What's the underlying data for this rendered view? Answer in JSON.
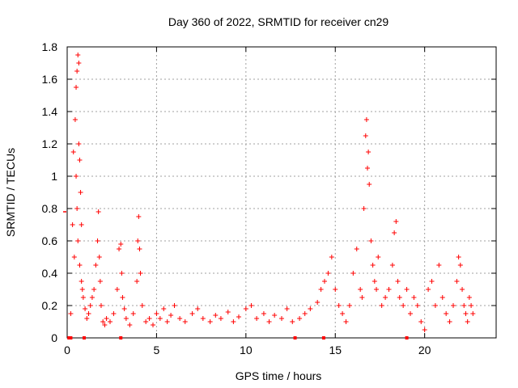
{
  "chart_data": {
    "type": "scatter",
    "title": "Day 360 of 2022, SRMTID for receiver cn29",
    "xlabel": "GPS time / hours",
    "ylabel": "SRMTID / TECUs",
    "xlim": [
      0,
      24
    ],
    "ylim": [
      0,
      1.8
    ],
    "xticks": [
      0,
      5,
      10,
      15,
      20
    ],
    "xtick_labels": [
      "0",
      "5",
      "10",
      "15",
      "20"
    ],
    "yticks": [
      0,
      0.2,
      0.4,
      0.6,
      0.8,
      1,
      1.2,
      1.4,
      1.6,
      1.8
    ],
    "ytick_labels": [
      "0",
      "0.2",
      "0.4",
      "0.6",
      "0.8",
      "1",
      "1.2",
      "1.4",
      "1.6",
      "1.8"
    ],
    "grid": true,
    "marker": "+",
    "color": "#ff0000",
    "series": [
      {
        "name": "SRMTID",
        "x": [
          0.2,
          0.3,
          0.35,
          0.4,
          0.45,
          0.5,
          0.5,
          0.55,
          0.55,
          0.6,
          0.6,
          0.65,
          0.65,
          0.7,
          0.7,
          0.75,
          0.8,
          0.8,
          0.85,
          0.9,
          1.0,
          1.1,
          1.2,
          1.3,
          1.4,
          1.5,
          1.6,
          1.7,
          1.75,
          1.8,
          1.85,
          1.9,
          2.0,
          2.1,
          2.2,
          2.4,
          2.6,
          2.8,
          2.9,
          3.0,
          3.05,
          3.1,
          3.2,
          3.3,
          3.5,
          3.7,
          3.9,
          3.95,
          4.0,
          4.05,
          4.1,
          4.2,
          4.4,
          4.6,
          4.8,
          5.0,
          5.2,
          5.4,
          5.6,
          5.8,
          6.0,
          6.3,
          6.6,
          7.0,
          7.3,
          7.6,
          8.0,
          8.3,
          8.6,
          9.0,
          9.3,
          9.6,
          10.0,
          10.3,
          10.6,
          11.0,
          11.3,
          11.6,
          12.0,
          12.3,
          12.6,
          13.0,
          13.3,
          13.6,
          14.0,
          14.2,
          14.4,
          14.6,
          14.8,
          15.0,
          15.2,
          15.4,
          15.6,
          15.8,
          16.0,
          16.2,
          16.4,
          16.5,
          16.6,
          16.7,
          16.75,
          16.8,
          16.85,
          16.9,
          17.0,
          17.1,
          17.2,
          17.3,
          17.4,
          17.6,
          17.8,
          18.0,
          18.2,
          18.3,
          18.4,
          18.5,
          18.6,
          18.8,
          19.0,
          19.2,
          19.4,
          19.6,
          19.8,
          20.0,
          20.2,
          20.4,
          20.6,
          20.8,
          21.0,
          21.2,
          21.4,
          21.6,
          21.8,
          21.9,
          22.0,
          22.1,
          22.2,
          22.3,
          22.4,
          22.5,
          22.6,
          22.7
        ],
        "y": [
          0.15,
          0.7,
          1.15,
          0.5,
          1.35,
          1.55,
          1.0,
          1.65,
          0.8,
          1.75,
          0.6,
          1.7,
          1.2,
          1.1,
          0.45,
          0.9,
          0.35,
          0.7,
          0.3,
          0.25,
          0.18,
          0.12,
          0.15,
          0.2,
          0.25,
          0.3,
          0.45,
          0.6,
          0.78,
          0.5,
          0.35,
          0.2,
          0.1,
          0.08,
          0.12,
          0.1,
          0.15,
          0.3,
          0.55,
          0.58,
          0.4,
          0.25,
          0.18,
          0.12,
          0.08,
          0.15,
          0.35,
          0.6,
          0.75,
          0.55,
          0.4,
          0.2,
          0.1,
          0.12,
          0.08,
          0.15,
          0.12,
          0.18,
          0.1,
          0.14,
          0.2,
          0.12,
          0.1,
          0.15,
          0.18,
          0.12,
          0.1,
          0.14,
          0.12,
          0.16,
          0.1,
          0.13,
          0.18,
          0.2,
          0.12,
          0.15,
          0.1,
          0.14,
          0.12,
          0.18,
          0.1,
          0.12,
          0.15,
          0.18,
          0.22,
          0.3,
          0.35,
          0.4,
          0.5,
          0.3,
          0.2,
          0.15,
          0.1,
          0.2,
          0.4,
          0.55,
          0.3,
          0.25,
          0.8,
          1.25,
          1.35,
          1.05,
          1.15,
          0.95,
          0.6,
          0.45,
          0.35,
          0.3,
          0.5,
          0.2,
          0.25,
          0.3,
          0.45,
          0.65,
          0.72,
          0.35,
          0.25,
          0.2,
          0.3,
          0.15,
          0.25,
          0.2,
          0.1,
          0.05,
          0.3,
          0.35,
          0.2,
          0.45,
          0.25,
          0.15,
          0.1,
          0.2,
          0.35,
          0.5,
          0.45,
          0.3,
          0.2,
          0.15,
          0.1,
          0.25,
          0.2,
          0.15
        ]
      }
    ],
    "baseline_markers_x": [
      0.1,
      0.2,
      0.95,
      3.0,
      12.75,
      14.35,
      19.0
    ]
  }
}
